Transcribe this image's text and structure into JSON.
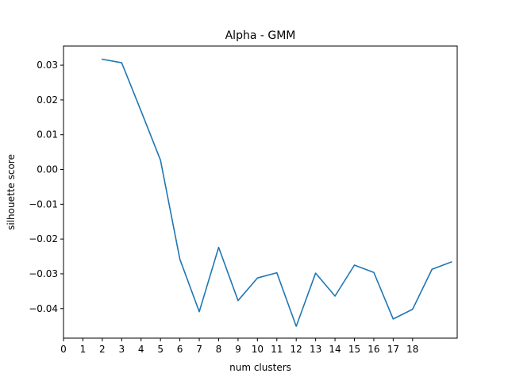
{
  "chart_data": {
    "type": "line",
    "title": "Alpha - GMM",
    "xlabel": "num clusters",
    "ylabel": "silhouette score",
    "xlim": [
      0,
      20.3
    ],
    "ylim": [
      -0.0485,
      0.0355
    ],
    "grid": false,
    "xticks": [
      0,
      1,
      2,
      3,
      4,
      5,
      6,
      7,
      8,
      9,
      10,
      11,
      12,
      13,
      14,
      15,
      16,
      17,
      18
    ],
    "xtick_labels": [
      "0",
      "1",
      "2",
      "3",
      "4",
      "5",
      "6",
      "7",
      "8",
      "9",
      "10",
      "11",
      "12",
      "13",
      "14",
      "15",
      "16",
      "17",
      "18"
    ],
    "yticks": [
      -0.04,
      -0.03,
      -0.02,
      -0.01,
      0.0,
      0.01,
      0.02,
      0.03
    ],
    "ytick_labels": [
      "−0.04",
      "−0.03",
      "−0.02",
      "−0.01",
      "0.00",
      "0.01",
      "0.02",
      "0.03"
    ],
    "series": [
      {
        "color": "#1f77b4",
        "x": [
          2,
          3,
          4,
          5,
          6,
          7,
          8,
          9,
          10,
          11,
          12,
          13,
          14,
          15,
          16,
          17,
          18,
          19,
          20
        ],
        "y": [
          0.0317,
          0.0307,
          0.0168,
          0.0027,
          -0.0258,
          -0.0409,
          -0.0224,
          -0.0377,
          -0.0312,
          -0.0297,
          -0.0451,
          -0.0298,
          -0.0364,
          -0.0275,
          -0.0296,
          -0.043,
          -0.0402,
          -0.0287,
          -0.0266
        ]
      }
    ]
  }
}
